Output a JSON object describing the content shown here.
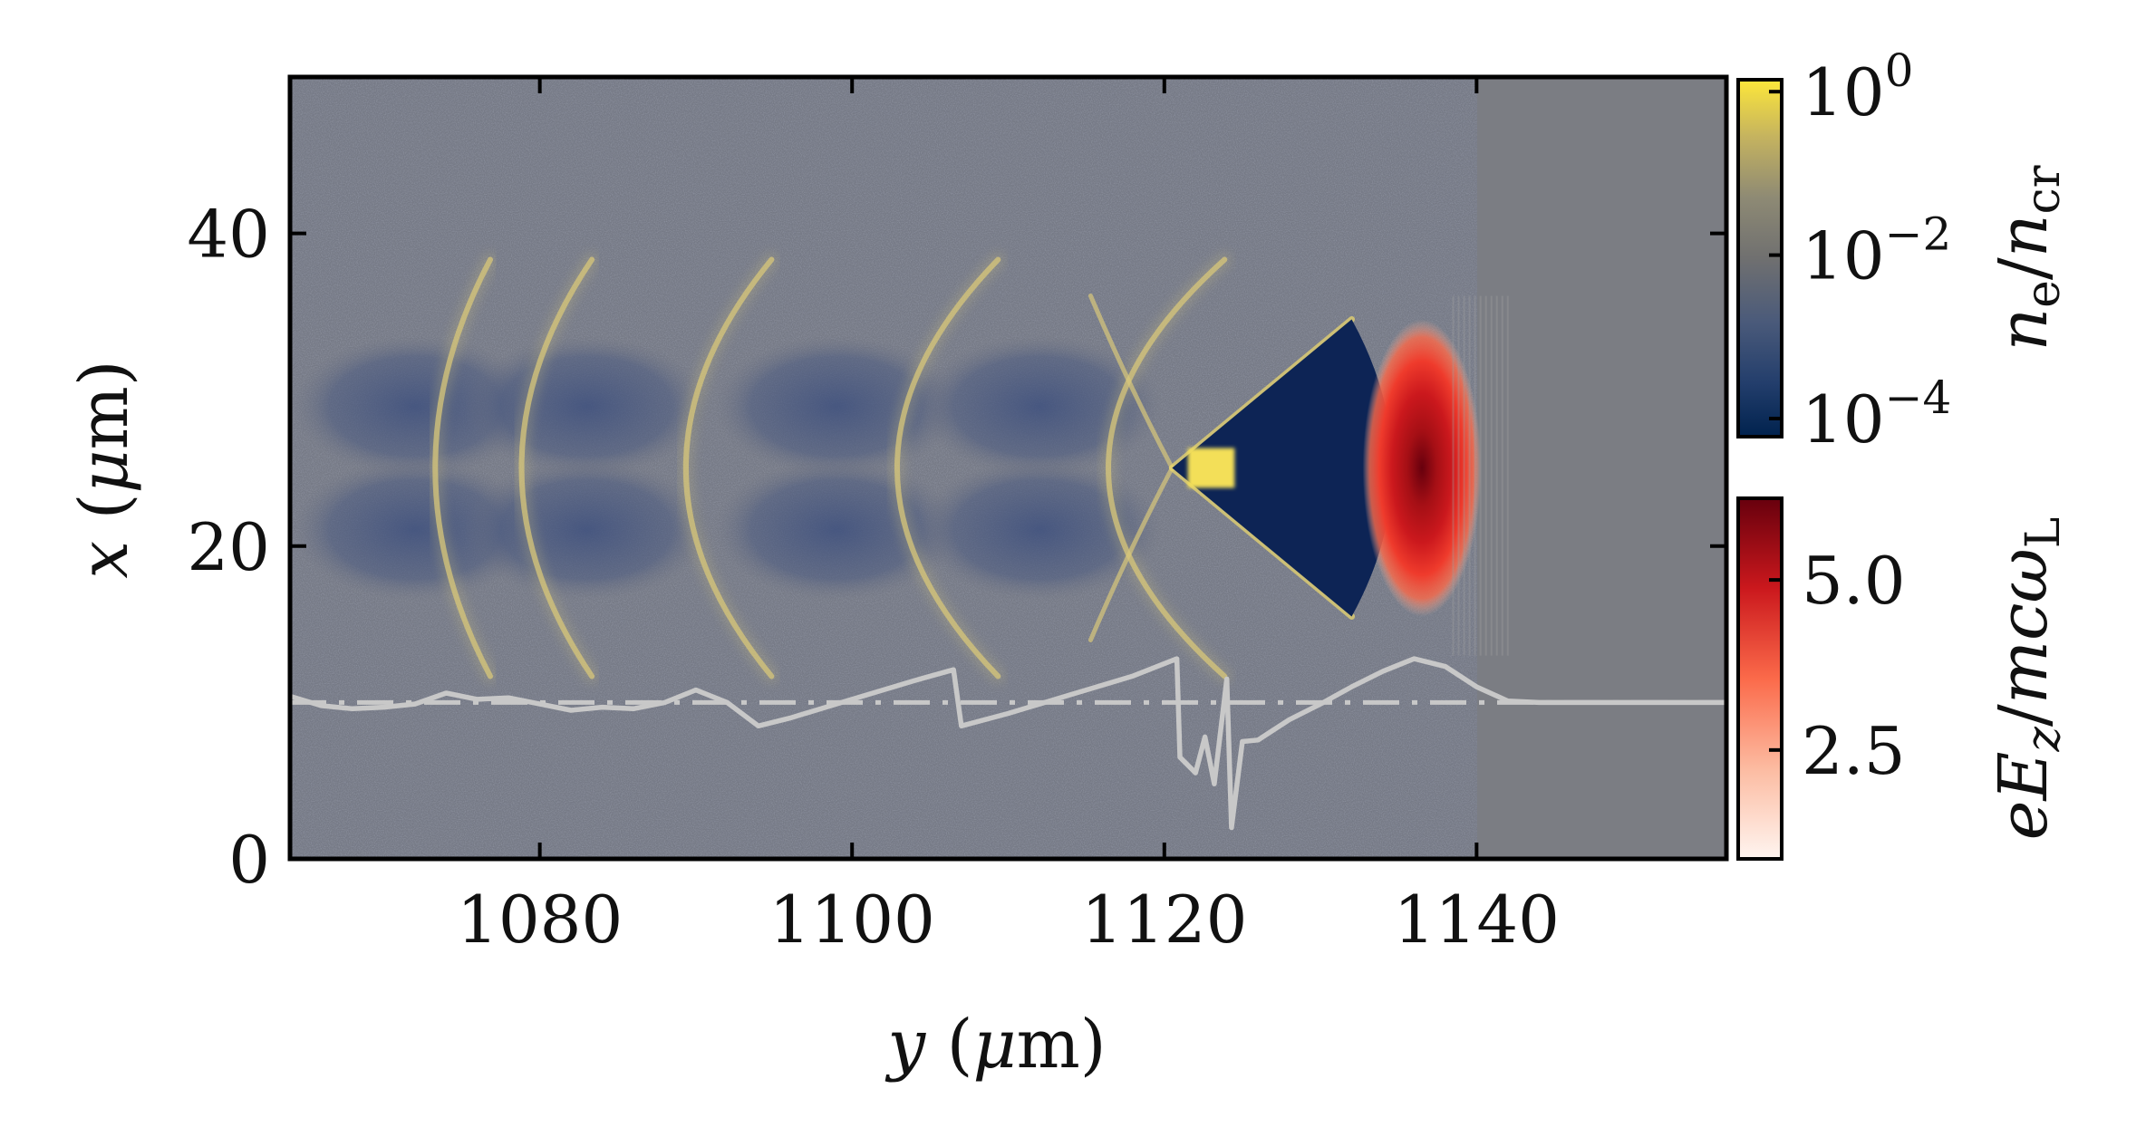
{
  "chart_data": {
    "type": "heatmap",
    "title": "",
    "xlabel": "y (μm)",
    "ylabel": "x (μm)",
    "xlim": [
      1064,
      1156
    ],
    "ylim": [
      0,
      50
    ],
    "xticks": [
      1080,
      1100,
      1120,
      1140
    ],
    "yticks": [
      0,
      20,
      40
    ],
    "grid": false,
    "colorbars": [
      {
        "label": "n_e/n_cr",
        "colormap": "cividis",
        "scale": "log",
        "range": [
          6e-05,
          1.4
        ],
        "ticks": [
          {
            "value": 1,
            "text_base": "10",
            "text_exp": "0"
          },
          {
            "value": 0.01,
            "text_base": "10",
            "text_exp": "−2"
          },
          {
            "value": 0.0001,
            "text_base": "10",
            "text_exp": "−4"
          }
        ]
      },
      {
        "label": "eE_z/mcω_L",
        "colormap": "Reds",
        "scale": "linear",
        "range": [
          0.9,
          6.2
        ],
        "ticks": [
          {
            "value": 5.0,
            "text": "5.0"
          },
          {
            "value": 2.5,
            "text": "2.5"
          }
        ]
      }
    ],
    "features": {
      "cavity": {
        "apex_y": 1120.5,
        "apex_x": 25,
        "back_y": 1132,
        "x_top": 34.5,
        "x_bottom": 15.5
      },
      "hot_spot_y": [
        1121.5,
        1124.5
      ],
      "laser_field_peak": {
        "y": 1136.5,
        "x": 25,
        "value": 6.0
      },
      "bubbles": [
        {
          "y_center": 1072,
          "x_center": 25
        },
        {
          "y_center": 1083,
          "x_center": 25
        },
        {
          "y_center": 1099,
          "x_center": 25
        },
        {
          "y_center": 1112,
          "x_center": 25
        }
      ]
    },
    "series": [
      {
        "type": "line",
        "style": "dash-dot",
        "color": "#c8c8c8",
        "points": [
          [
            1064,
            10
          ],
          [
            1156,
            10
          ]
        ]
      },
      {
        "type": "line",
        "style": "solid",
        "color": "#c8c8c8",
        "points": [
          [
            1064,
            10.4
          ],
          [
            1066,
            9.8
          ],
          [
            1068,
            9.6
          ],
          [
            1070,
            9.7
          ],
          [
            1072,
            9.9
          ],
          [
            1074,
            10.6
          ],
          [
            1076,
            10.2
          ],
          [
            1078,
            10.3
          ],
          [
            1080,
            9.9
          ],
          [
            1082,
            9.5
          ],
          [
            1084,
            9.7
          ],
          [
            1086,
            9.6
          ],
          [
            1088,
            10.0
          ],
          [
            1090,
            10.8
          ],
          [
            1092,
            10.0
          ],
          [
            1094,
            8.5
          ],
          [
            1096,
            9.0
          ],
          [
            1100,
            10.2
          ],
          [
            1104,
            11.4
          ],
          [
            1106.5,
            12.1
          ],
          [
            1107,
            8.5
          ],
          [
            1110,
            9.3
          ],
          [
            1114,
            10.5
          ],
          [
            1118,
            11.7
          ],
          [
            1120.8,
            12.8
          ],
          [
            1121,
            6.5
          ],
          [
            1122,
            5.5
          ],
          [
            1122.6,
            7.8
          ],
          [
            1123.2,
            4.8
          ],
          [
            1124,
            11.5
          ],
          [
            1124.3,
            2.0
          ],
          [
            1125,
            7.5
          ],
          [
            1126,
            7.6
          ],
          [
            1128,
            8.9
          ],
          [
            1130,
            9.9
          ],
          [
            1132,
            11.0
          ],
          [
            1134,
            12.0
          ],
          [
            1136,
            12.8
          ],
          [
            1138,
            12.3
          ],
          [
            1140,
            11.0
          ],
          [
            1142,
            10.1
          ],
          [
            1144,
            10.0
          ],
          [
            1156,
            10.0
          ]
        ]
      }
    ]
  }
}
